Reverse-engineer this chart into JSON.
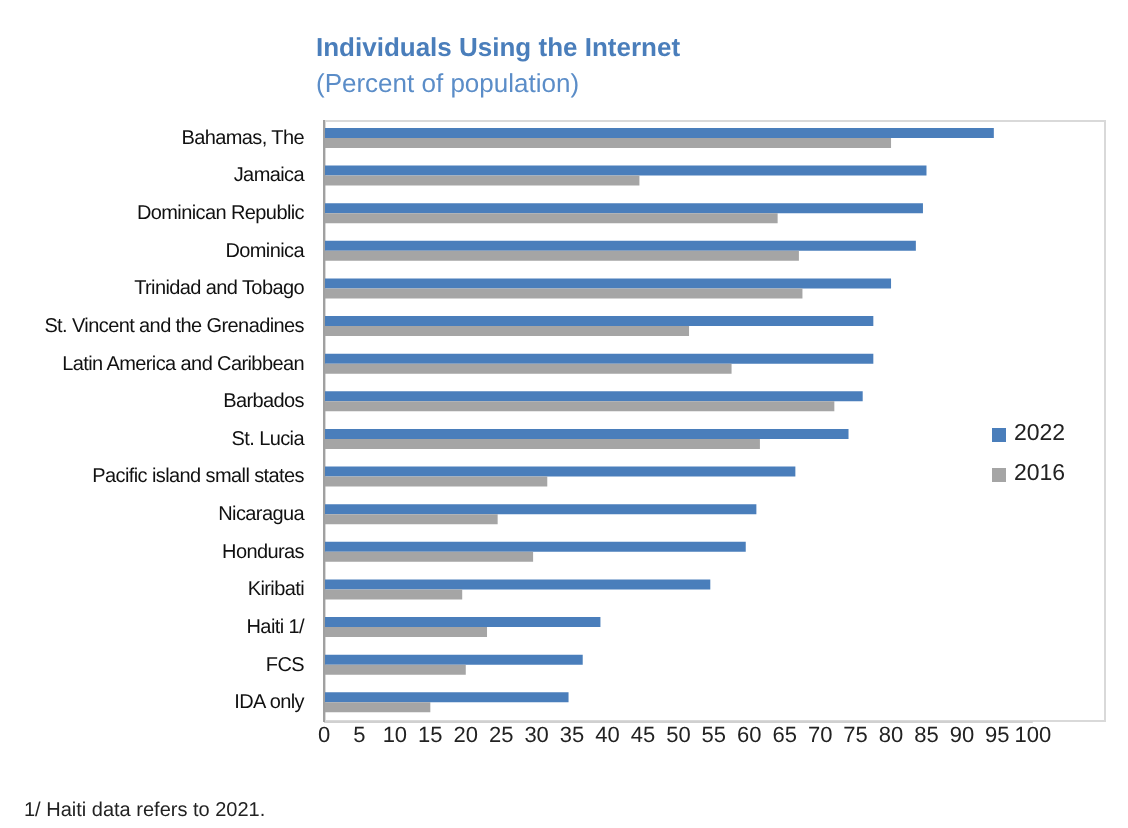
{
  "chart_data": {
    "type": "bar",
    "orientation": "horizontal",
    "title": "Individuals Using the Internet",
    "subtitle": "(Percent of population)",
    "categories": [
      "Bahamas, The",
      "Jamaica",
      "Dominican Republic",
      "Dominica",
      "Trinidad and Tobago",
      "St. Vincent and the Grenadines",
      "Latin America and Caribbean",
      "Barbados",
      "St. Lucia",
      "Pacific island small states",
      "Nicaragua",
      "Honduras",
      "Kiribati",
      "Haiti 1/",
      "FCS",
      "IDA only"
    ],
    "series": [
      {
        "name": "2022",
        "color": "#4a7ebb",
        "values": [
          94.5,
          85,
          84.5,
          83.5,
          80,
          77.5,
          77.5,
          76,
          74,
          66.5,
          61,
          59.5,
          54.5,
          39,
          36.5,
          34.5
        ]
      },
      {
        "name": "2016",
        "color": "#a5a5a5",
        "values": [
          80,
          44.5,
          64,
          67,
          67.5,
          51.5,
          57.5,
          72,
          61.5,
          31.5,
          24.5,
          29.5,
          19.5,
          23,
          20,
          15
        ]
      }
    ],
    "xlim": [
      0,
      100
    ],
    "xticks": [
      0,
      5,
      10,
      15,
      20,
      25,
      30,
      35,
      40,
      45,
      50,
      55,
      60,
      65,
      70,
      75,
      80,
      85,
      90,
      95,
      100
    ],
    "legend": "right",
    "annotations": [
      "1/ Haiti data refers to 2021."
    ]
  }
}
